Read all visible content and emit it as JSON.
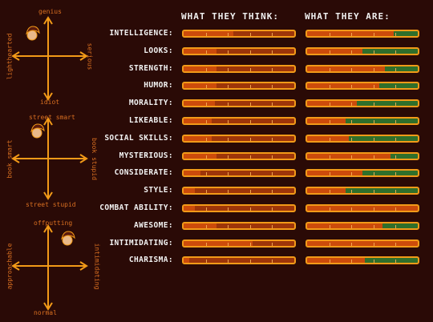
{
  "headers": {
    "think": "WHAT THEY THINK:",
    "are": "WHAT THEY ARE:"
  },
  "colors": {
    "background": "#2a0a06",
    "bar_border": "#f29a18",
    "think_fill": "#cc4b0b",
    "think_empty": "#9e3509",
    "are_red": "#cc4b0b",
    "are_green": "#2f6f2b",
    "axis": "#f29a18",
    "axis_text": "#d96f21"
  },
  "charts": [
    {
      "top": "genius",
      "bottom": "idiot",
      "left": "lighthearted",
      "right": "serious",
      "icon": "face-doodle-icon"
    },
    {
      "top": "street smart",
      "bottom": "street stupid",
      "left": "book smart",
      "right": "book stupid",
      "icon": "face-doodle-icon"
    },
    {
      "top": "offputting",
      "bottom": "normal",
      "left": "approachable",
      "right": "intimidating",
      "icon": "face-doodle-icon"
    }
  ],
  "traits": [
    {
      "label": "INTELLIGENCE:",
      "think": 0.45,
      "are_green": 0.22
    },
    {
      "label": "LOOKS:",
      "think": 0.3,
      "are_green": 0.5
    },
    {
      "label": "STRENGTH:",
      "think": 0.3,
      "are_green": 0.3
    },
    {
      "label": "HUMOR:",
      "think": 0.3,
      "are_green": 0.35
    },
    {
      "label": "MORALITY:",
      "think": 0.28,
      "are_green": 0.55
    },
    {
      "label": "LIKEABLE:",
      "think": 0.25,
      "are_green": 0.65
    },
    {
      "label": "SOCIAL SKILLS:",
      "think": 0.25,
      "are_green": 0.62
    },
    {
      "label": "MYSTERIOUS:",
      "think": 0.3,
      "are_green": 0.25
    },
    {
      "label": "CONSIDERATE:",
      "think": 0.15,
      "are_green": 0.5
    },
    {
      "label": "STYLE:",
      "think": 0.1,
      "are_green": 0.65
    },
    {
      "label": "COMBAT ABILITY:",
      "think": 0.1,
      "are_green": 0.0
    },
    {
      "label": "AWESOME:",
      "think": 0.3,
      "are_green": 0.32
    },
    {
      "label": "INTIMIDATING:",
      "think": 0.62,
      "are_green": 0.0
    },
    {
      "label": "CHARISMA:",
      "think": 0.05,
      "are_green": 0.48
    }
  ]
}
